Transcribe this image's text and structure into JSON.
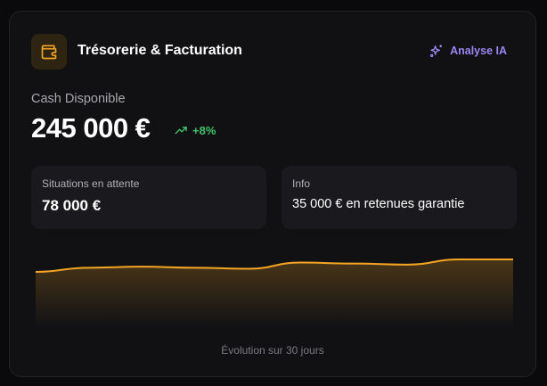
{
  "header": {
    "title": "Trésorerie & Facturation",
    "icon": "wallet-icon",
    "ai_button": {
      "label": "Analyse IA",
      "icon": "sparkles-icon"
    }
  },
  "cash": {
    "label": "Cash Disponible",
    "value": "245 000 €",
    "trend": "+8%",
    "trend_icon": "trending-up-icon"
  },
  "cards": [
    {
      "label": "Situations en attente",
      "value": "78 000 €"
    },
    {
      "label": "Info",
      "value": "35 000 € en retenues garantie"
    }
  ],
  "colors": {
    "accent": "#f5a524",
    "ai": "#9b86f2",
    "positive": "#3fc26a"
  },
  "chart_data": {
    "type": "area",
    "caption": "Évolution sur 30 jours",
    "values": [
      40,
      44,
      45,
      44,
      43,
      49,
      48,
      47,
      52,
      52
    ],
    "grid": false
  }
}
